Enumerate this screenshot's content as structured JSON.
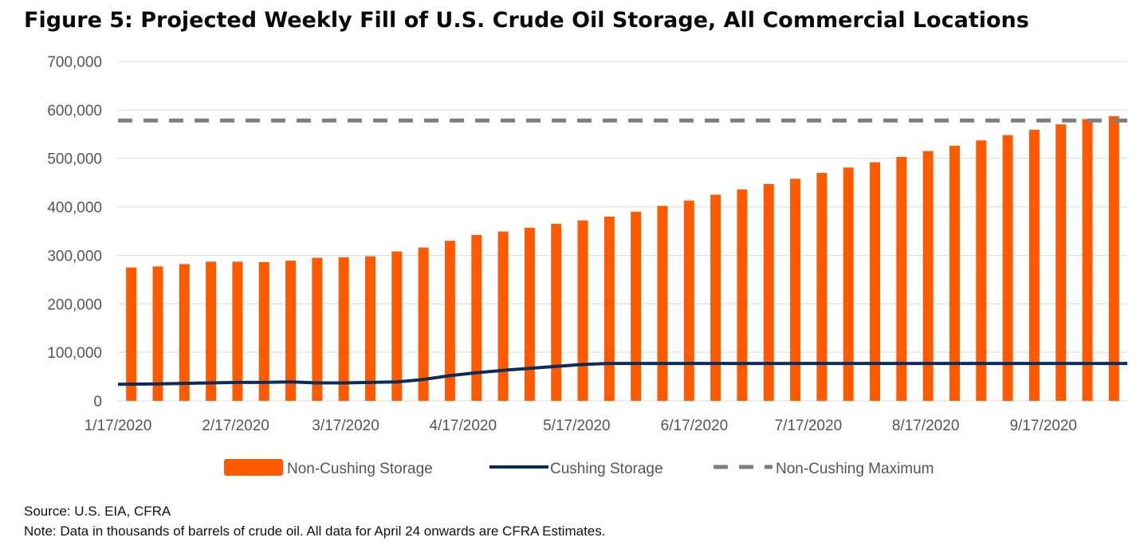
{
  "title": "Figure 5: Projected Weekly Fill of U.S. Crude Oil Storage, All Commercial Locations",
  "source": "Source: U.S. EIA, CFRA",
  "note": "Note: Data in thousands of barrels of crude oil. All data for April 24 onwards are CFRA Estimates.",
  "chart_data": {
    "type": "bar",
    "x_tick_labels": [
      "1/17/2020",
      "2/17/2020",
      "3/17/2020",
      "4/17/2020",
      "5/17/2020",
      "6/17/2020",
      "7/17/2020",
      "8/17/2020",
      "9/17/2020"
    ],
    "x_tick_positions": [
      0,
      4.43,
      8.57,
      12.99,
      17.27,
      21.7,
      25.99,
      30.41,
      34.84
    ],
    "y_tick_labels": [
      "0",
      "100,000",
      "200,000",
      "300,000",
      "400,000",
      "500,000",
      "600,000",
      "700,000"
    ],
    "ylim": [
      0,
      700000
    ],
    "gridlines": true,
    "legend_position": "bottom",
    "series": [
      {
        "name": "Non-Cushing Storage",
        "kind": "bar",
        "color": "#ff5a00",
        "values": [
          275000,
          277000,
          282000,
          287000,
          287000,
          286000,
          289000,
          295000,
          296000,
          298000,
          308000,
          316000,
          330000,
          342000,
          349000,
          357000,
          365000,
          372000,
          380000,
          390000,
          402000,
          413000,
          425000,
          436000,
          447000,
          458000,
          470000,
          481000,
          492000,
          503000,
          515000,
          526000,
          537000,
          548000,
          559000,
          570000,
          581000,
          587000
        ]
      },
      {
        "name": "Cushing Storage",
        "kind": "line",
        "color": "#0c2c5c",
        "values": [
          34000,
          35000,
          36000,
          37000,
          38000,
          38000,
          39000,
          37000,
          37000,
          38000,
          39000,
          44000,
          52000,
          58000,
          63000,
          67000,
          71000,
          75000,
          77000,
          77000,
          77000,
          77000,
          77000,
          77000,
          77000,
          77000,
          77000,
          77000,
          77000,
          77000,
          77000,
          77000,
          77000,
          77000,
          77000,
          77000,
          77000,
          77000
        ]
      },
      {
        "name": "Non-Cushing Maximum",
        "kind": "dashed-line",
        "color": "#7f7f7f",
        "value": 578000
      }
    ]
  }
}
